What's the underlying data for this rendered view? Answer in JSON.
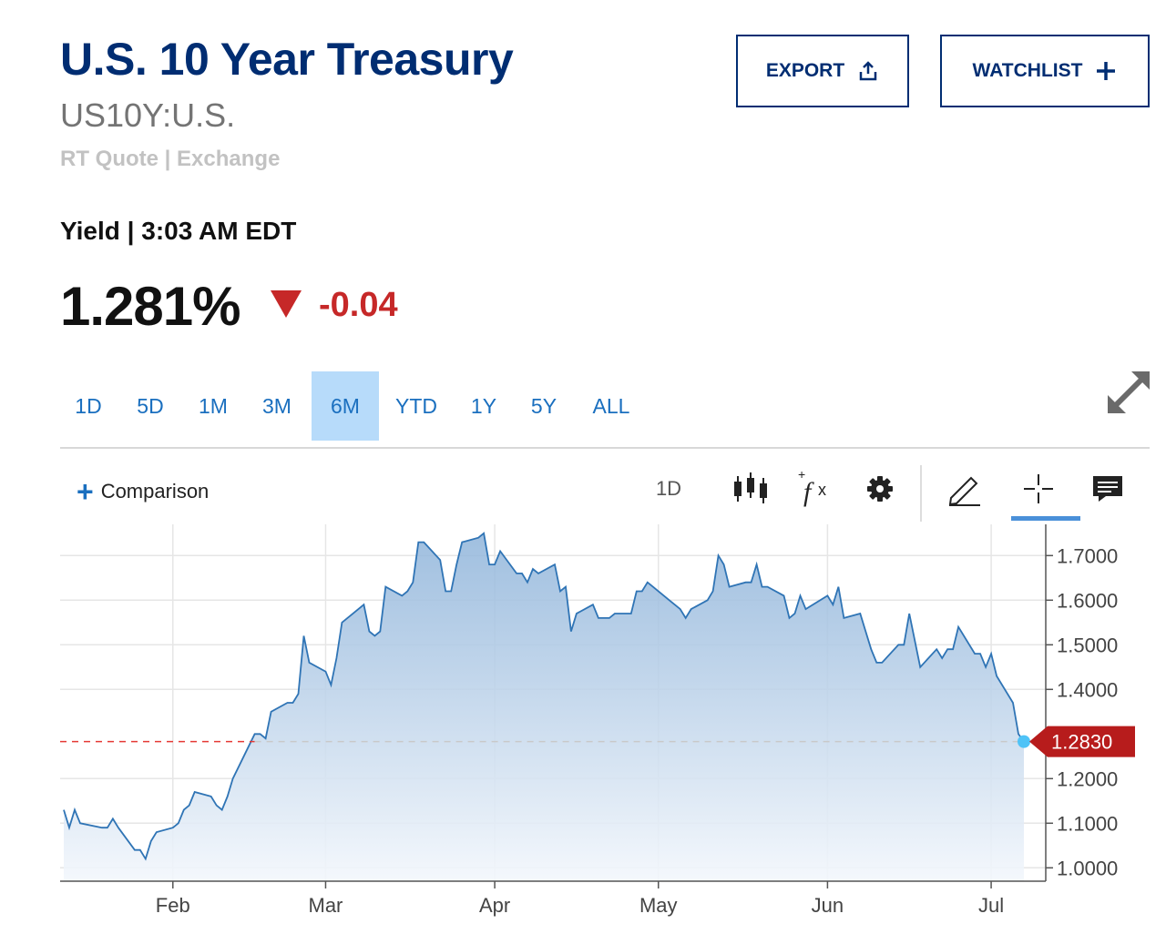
{
  "header": {
    "title": "U.S. 10 Year Treasury",
    "symbol": "US10Y:U.S.",
    "quote_source": "RT Quote | Exchange",
    "export_label": "EXPORT",
    "watchlist_label": "WATCHLIST"
  },
  "quote": {
    "yield_label": "Yield | 3:03 AM EDT",
    "price": "1.281%",
    "change": "-0.04",
    "change_color": "#c62828"
  },
  "range_tabs": [
    "1D",
    "5D",
    "1M",
    "3M",
    "6M",
    "YTD",
    "1Y",
    "5Y",
    "ALL"
  ],
  "active_range": "6M",
  "toolbar": {
    "comparison_label": "Comparison",
    "interval": "1D",
    "icons": [
      "candlestick-icon",
      "fx-icon",
      "gear-icon",
      "pencil-icon",
      "crosshair-icon",
      "comment-icon"
    ]
  },
  "chart_data": {
    "type": "area",
    "title": "",
    "xlabel": "",
    "ylabel": "",
    "x_ticks": [
      "Feb",
      "Mar",
      "Apr",
      "May",
      "Jun",
      "Jul"
    ],
    "x_ticks_dates": [
      "2021-02-01",
      "2021-03-01",
      "2021-04-01",
      "2021-05-01",
      "2021-06-01",
      "2021-07-01"
    ],
    "y_ticks": [
      "1.7000",
      "1.6000",
      "1.5000",
      "1.4000",
      "1.2000",
      "1.1000",
      "1.0000"
    ],
    "ylim": [
      0.97,
      1.77
    ],
    "xlim": [
      "2021-01-12",
      "2021-07-07"
    ],
    "current_value_label": "1.2830",
    "current_value": 1.283,
    "line_color": "#2f74b5",
    "marker_color": "#4fc3f7",
    "label_color": "#b71c1c",
    "series": [
      {
        "values": [
          [
            "2021-01-12",
            1.13
          ],
          [
            "2021-01-13",
            1.09
          ],
          [
            "2021-01-14",
            1.13
          ],
          [
            "2021-01-15",
            1.1
          ],
          [
            "2021-01-19",
            1.09
          ],
          [
            "2021-01-20",
            1.09
          ],
          [
            "2021-01-21",
            1.11
          ],
          [
            "2021-01-22",
            1.09
          ],
          [
            "2021-01-25",
            1.04
          ],
          [
            "2021-01-26",
            1.04
          ],
          [
            "2021-01-27",
            1.02
          ],
          [
            "2021-01-28",
            1.06
          ],
          [
            "2021-01-29",
            1.08
          ],
          [
            "2021-02-01",
            1.09
          ],
          [
            "2021-02-02",
            1.1
          ],
          [
            "2021-02-03",
            1.13
          ],
          [
            "2021-02-04",
            1.14
          ],
          [
            "2021-02-05",
            1.17
          ],
          [
            "2021-02-08",
            1.16
          ],
          [
            "2021-02-09",
            1.14
          ],
          [
            "2021-02-10",
            1.13
          ],
          [
            "2021-02-11",
            1.16
          ],
          [
            "2021-02-12",
            1.2
          ],
          [
            "2021-02-16",
            1.3
          ],
          [
            "2021-02-17",
            1.3
          ],
          [
            "2021-02-18",
            1.29
          ],
          [
            "2021-02-19",
            1.35
          ],
          [
            "2021-02-22",
            1.37
          ],
          [
            "2021-02-23",
            1.37
          ],
          [
            "2021-02-24",
            1.39
          ],
          [
            "2021-02-25",
            1.52
          ],
          [
            "2021-02-26",
            1.46
          ],
          [
            "2021-03-01",
            1.44
          ],
          [
            "2021-03-02",
            1.41
          ],
          [
            "2021-03-03",
            1.47
          ],
          [
            "2021-03-04",
            1.55
          ],
          [
            "2021-03-05",
            1.56
          ],
          [
            "2021-03-08",
            1.59
          ],
          [
            "2021-03-09",
            1.53
          ],
          [
            "2021-03-10",
            1.52
          ],
          [
            "2021-03-11",
            1.53
          ],
          [
            "2021-03-12",
            1.63
          ],
          [
            "2021-03-15",
            1.61
          ],
          [
            "2021-03-16",
            1.62
          ],
          [
            "2021-03-17",
            1.64
          ],
          [
            "2021-03-18",
            1.73
          ],
          [
            "2021-03-19",
            1.73
          ],
          [
            "2021-03-22",
            1.69
          ],
          [
            "2021-03-23",
            1.62
          ],
          [
            "2021-03-24",
            1.62
          ],
          [
            "2021-03-25",
            1.68
          ],
          [
            "2021-03-26",
            1.73
          ],
          [
            "2021-03-29",
            1.74
          ],
          [
            "2021-03-30",
            1.75
          ],
          [
            "2021-03-31",
            1.68
          ],
          [
            "2021-04-01",
            1.68
          ],
          [
            "2021-04-02",
            1.71
          ],
          [
            "2021-04-05",
            1.66
          ],
          [
            "2021-04-06",
            1.66
          ],
          [
            "2021-04-07",
            1.64
          ],
          [
            "2021-04-08",
            1.67
          ],
          [
            "2021-04-09",
            1.66
          ],
          [
            "2021-04-12",
            1.68
          ],
          [
            "2021-04-13",
            1.62
          ],
          [
            "2021-04-14",
            1.63
          ],
          [
            "2021-04-15",
            1.53
          ],
          [
            "2021-04-16",
            1.57
          ],
          [
            "2021-04-19",
            1.59
          ],
          [
            "2021-04-20",
            1.56
          ],
          [
            "2021-04-21",
            1.56
          ],
          [
            "2021-04-22",
            1.56
          ],
          [
            "2021-04-23",
            1.57
          ],
          [
            "2021-04-26",
            1.57
          ],
          [
            "2021-04-27",
            1.62
          ],
          [
            "2021-04-28",
            1.62
          ],
          [
            "2021-04-29",
            1.64
          ],
          [
            "2021-04-30",
            1.63
          ],
          [
            "2021-05-03",
            1.6
          ],
          [
            "2021-05-04",
            1.59
          ],
          [
            "2021-05-05",
            1.58
          ],
          [
            "2021-05-06",
            1.56
          ],
          [
            "2021-05-07",
            1.58
          ],
          [
            "2021-05-10",
            1.6
          ],
          [
            "2021-05-11",
            1.62
          ],
          [
            "2021-05-12",
            1.7
          ],
          [
            "2021-05-13",
            1.68
          ],
          [
            "2021-05-14",
            1.63
          ],
          [
            "2021-05-17",
            1.64
          ],
          [
            "2021-05-18",
            1.64
          ],
          [
            "2021-05-19",
            1.68
          ],
          [
            "2021-05-20",
            1.63
          ],
          [
            "2021-05-21",
            1.63
          ],
          [
            "2021-05-24",
            1.61
          ],
          [
            "2021-05-25",
            1.56
          ],
          [
            "2021-05-26",
            1.57
          ],
          [
            "2021-05-27",
            1.61
          ],
          [
            "2021-05-28",
            1.58
          ],
          [
            "2021-06-01",
            1.61
          ],
          [
            "2021-06-02",
            1.59
          ],
          [
            "2021-06-03",
            1.63
          ],
          [
            "2021-06-04",
            1.56
          ],
          [
            "2021-06-07",
            1.57
          ],
          [
            "2021-06-08",
            1.53
          ],
          [
            "2021-06-09",
            1.49
          ],
          [
            "2021-06-10",
            1.46
          ],
          [
            "2021-06-11",
            1.46
          ],
          [
            "2021-06-14",
            1.5
          ],
          [
            "2021-06-15",
            1.5
          ],
          [
            "2021-06-16",
            1.57
          ],
          [
            "2021-06-17",
            1.51
          ],
          [
            "2021-06-18",
            1.45
          ],
          [
            "2021-06-21",
            1.49
          ],
          [
            "2021-06-22",
            1.47
          ],
          [
            "2021-06-23",
            1.49
          ],
          [
            "2021-06-24",
            1.49
          ],
          [
            "2021-06-25",
            1.54
          ],
          [
            "2021-06-28",
            1.48
          ],
          [
            "2021-06-29",
            1.48
          ],
          [
            "2021-06-30",
            1.45
          ],
          [
            "2021-07-01",
            1.48
          ],
          [
            "2021-07-02",
            1.43
          ],
          [
            "2021-07-05",
            1.37
          ],
          [
            "2021-07-06",
            1.3
          ],
          [
            "2021-07-07",
            1.283
          ]
        ]
      }
    ]
  }
}
